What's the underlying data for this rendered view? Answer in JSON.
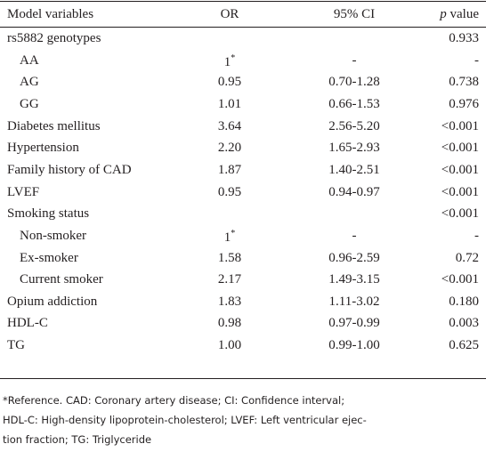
{
  "table": {
    "header": [
      "Model variables",
      "OR",
      "95% CI",
      [
        "p",
        "value"
      ]
    ],
    "rows": [
      {
        "cells": [
          "rs5882 genotypes",
          null,
          null,
          "0.933"
        ],
        "items": [
          [
            "AA",
            {
              "text": "1",
              "sup": "*"
            },
            "-",
            "-"
          ],
          [
            "AG",
            "0.95",
            "0.70-1.28",
            "0.738"
          ],
          [
            "GG",
            "1.01",
            "0.66-1.53",
            "0.976"
          ]
        ]
      },
      {
        "cells": [
          "Diabetes mellitus",
          "3.64",
          "2.56-5.20",
          "<0.001"
        ]
      },
      {
        "cells": [
          "Hypertension",
          "2.20",
          "1.65-2.93",
          "<0.001"
        ]
      },
      {
        "cells": [
          "Family history of CAD",
          "1.87",
          "1.40-2.51",
          "<0.001"
        ]
      },
      {
        "cells": [
          "LVEF",
          "0.95",
          "0.94-0.97",
          "<0.001"
        ]
      },
      {
        "cells": [
          "Smoking status",
          null,
          null,
          "<0.001"
        ],
        "items": [
          [
            "Non-smoker",
            {
              "text": "1",
              "sup": "*"
            },
            "-",
            "-"
          ],
          [
            "Ex-smoker",
            "1.58",
            "0.96-2.59",
            "0.72"
          ],
          [
            "Current smoker",
            "2.17",
            "1.49-3.15",
            "<0.001"
          ]
        ]
      },
      {
        "cells": [
          "Opium addiction",
          "1.83",
          "1.11-3.02",
          "0.180"
        ]
      },
      {
        "cells": [
          "HDL-C",
          "0.98",
          "0.97-0.99",
          "0.003"
        ]
      },
      {
        "cells": [
          "TG",
          "1.00",
          "0.99-1.00",
          "0.625"
        ]
      }
    ]
  },
  "footnote": [
    "*Reference. CAD: Coronary artery disease; CI: Confidence interval;",
    "HDL-C: High-density lipoprotein-cholesterol; LVEF: Left ventricular ejec-",
    "tion fraction; TG: Triglyceride"
  ]
}
